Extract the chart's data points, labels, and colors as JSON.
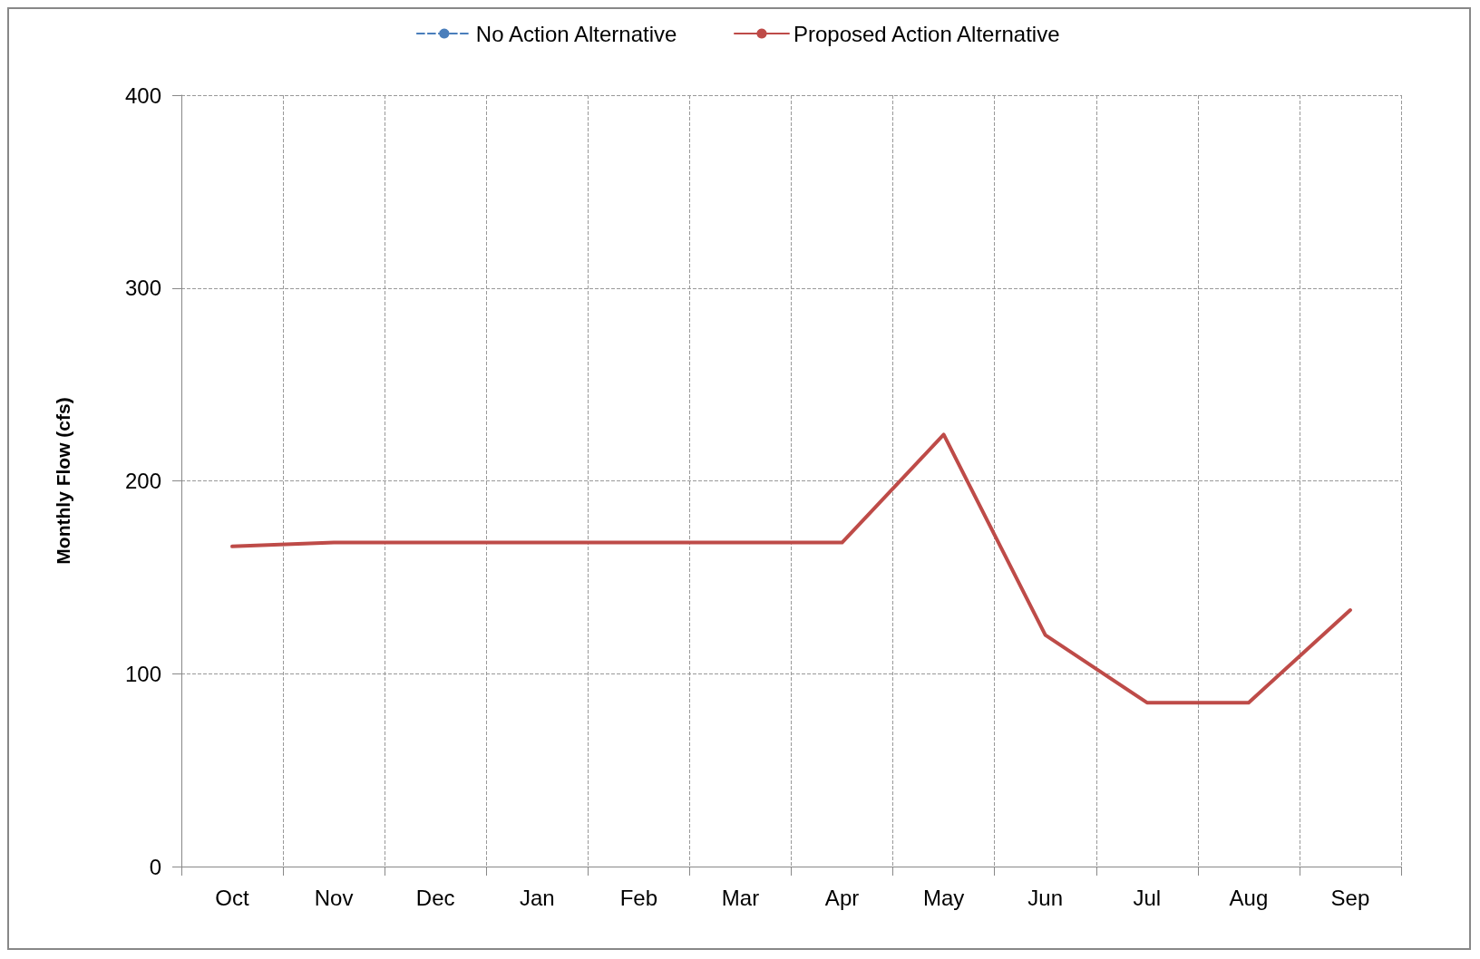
{
  "chart_data": {
    "type": "line",
    "ylabel": "Monthly Flow (cfs)",
    "categories": [
      "Oct",
      "Nov",
      "Dec",
      "Jan",
      "Feb",
      "Mar",
      "Apr",
      "May",
      "Jun",
      "Jul",
      "Aug",
      "Sep"
    ],
    "series": [
      {
        "name": "No Action Alternative",
        "color": "#4a7ebb",
        "line_style": "dashed",
        "values": [
          null,
          null,
          null,
          null,
          null,
          null,
          null,
          null,
          null,
          null,
          null,
          null
        ]
      },
      {
        "name": "Proposed Action Alternative",
        "color": "#be4b48",
        "line_style": "solid",
        "values": [
          166,
          168,
          168,
          168,
          168,
          168,
          168,
          224,
          120,
          85,
          85,
          133
        ]
      }
    ],
    "ylim": [
      0,
      400
    ],
    "yticks": [
      0,
      100,
      200,
      300,
      400
    ],
    "grid": true,
    "legend": "top",
    "marker": "none"
  }
}
